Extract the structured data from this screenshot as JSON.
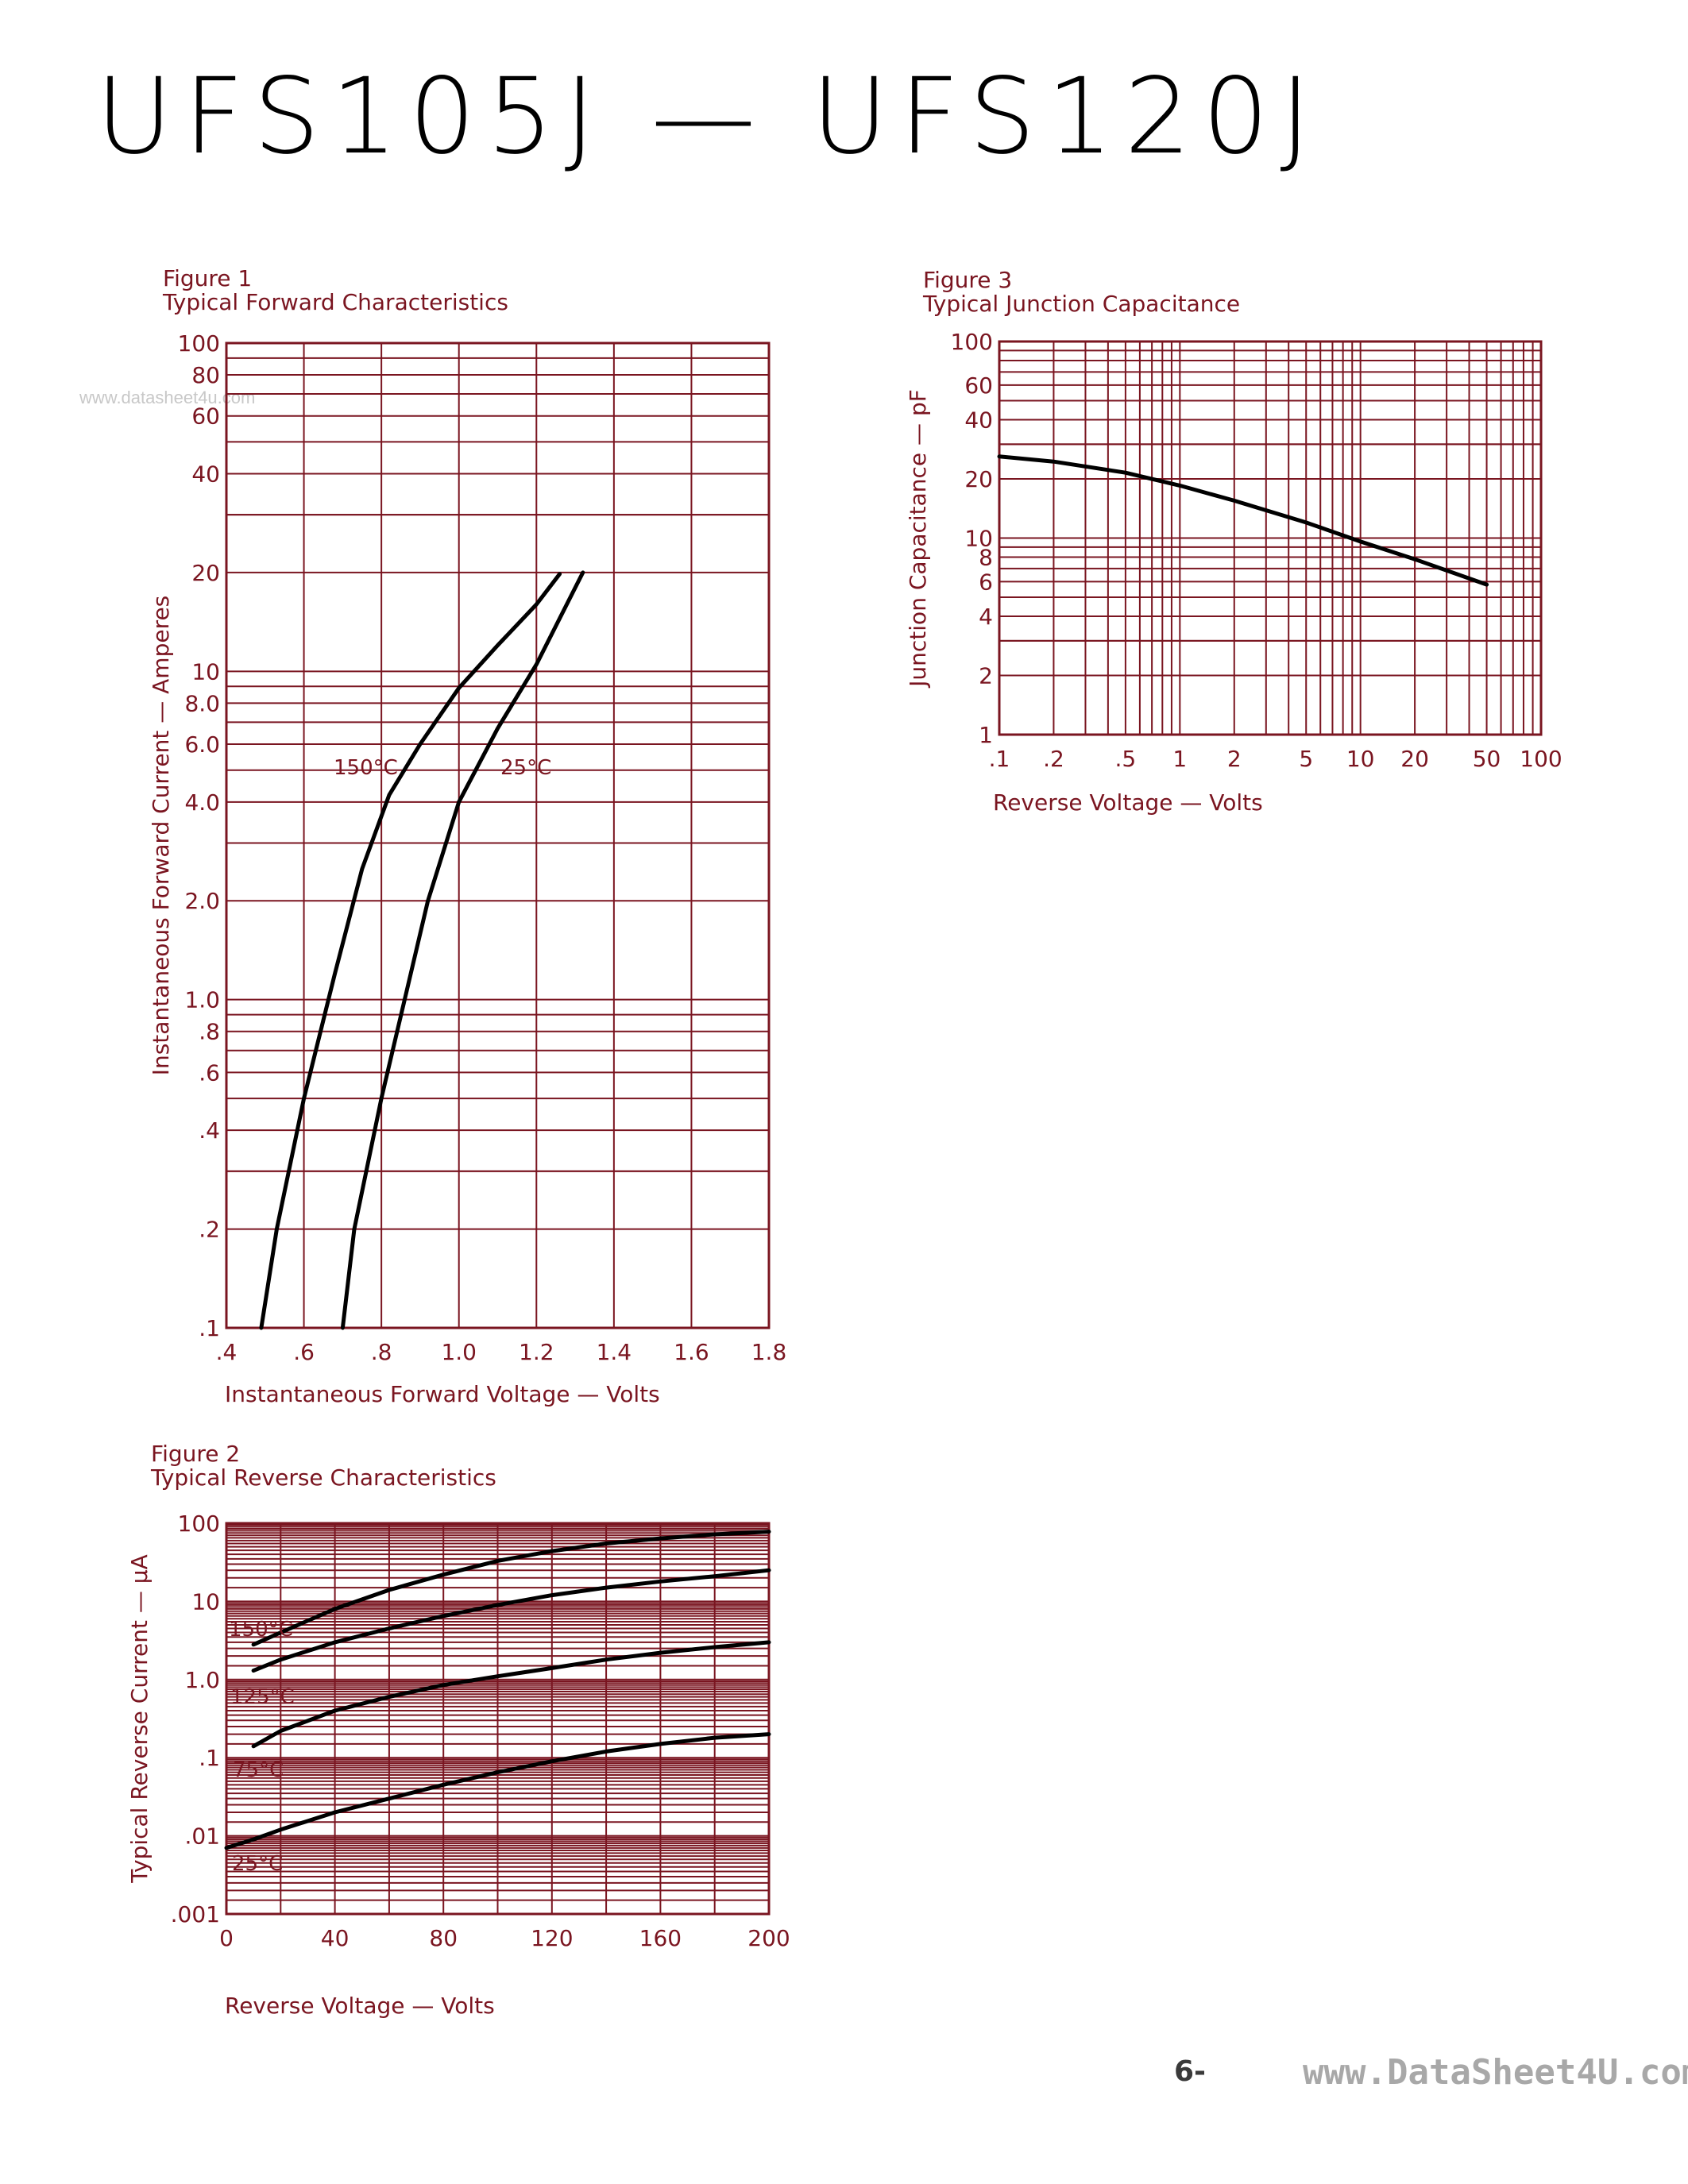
{
  "page": {
    "title": "UFS105J  —  UFS120J",
    "watermark": "www.datasheet4u.com",
    "footer": "6-",
    "footer_overlay": "www.DataSheet4U.com"
  },
  "chart_data": [
    {
      "type": "line",
      "figure_label": "Figure 1",
      "title": "Typical Forward Characteristics",
      "xlabel": "Instantaneous Forward Voltage — Volts",
      "ylabel": "Instantaneous Forward Current — Amperes",
      "xscale": "linear",
      "yscale": "log",
      "xlim": [
        0.4,
        1.8
      ],
      "ylim": [
        0.1,
        100
      ],
      "x_ticks": [
        ".4",
        ".6",
        ".8",
        "1.0",
        "1.2",
        "1.4",
        "1.6",
        "1.8"
      ],
      "y_ticks": [
        ".1",
        ".2",
        ".4",
        ".6",
        ".8",
        "1.0",
        "2.0",
        "4.0",
        "6.0",
        "8.0",
        "10",
        "20",
        "40",
        "60",
        "80",
        "100"
      ],
      "grid": true,
      "series": [
        {
          "name": "150°C",
          "x": [
            0.49,
            0.53,
            0.6,
            0.68,
            0.75,
            0.82,
            0.9,
            1.0,
            1.1,
            1.2,
            1.26
          ],
          "y": [
            0.1,
            0.2,
            0.5,
            1.2,
            2.5,
            4.2,
            6.0,
            8.9,
            12.0,
            16.0,
            19.8
          ]
        },
        {
          "name": "25°C",
          "x": [
            0.7,
            0.73,
            0.8,
            0.86,
            0.92,
            1.0,
            1.1,
            1.2,
            1.26,
            1.32
          ],
          "y": [
            0.1,
            0.2,
            0.5,
            1.0,
            2.0,
            4.0,
            6.7,
            10.5,
            14.5,
            20.0
          ]
        }
      ]
    },
    {
      "type": "line",
      "figure_label": "Figure 2",
      "title": "Typical Reverse Characteristics",
      "xlabel": "Reverse Voltage — Volts",
      "ylabel": "Typical Reverse Current — μA",
      "xscale": "linear",
      "yscale": "log",
      "xlim": [
        0,
        200
      ],
      "ylim": [
        0.001,
        100
      ],
      "x_ticks": [
        "0",
        "40",
        "80",
        "120",
        "160",
        "200"
      ],
      "y_ticks": [
        ".001",
        ".01",
        ".1",
        "1.0",
        "10",
        "100"
      ],
      "grid": true,
      "series": [
        {
          "name": "150°C",
          "x": [
            10,
            20,
            40,
            60,
            80,
            100,
            120,
            140,
            160,
            180,
            200
          ],
          "y": [
            2.8,
            4.0,
            8.0,
            14.0,
            22.0,
            33.0,
            44.0,
            55.0,
            64.0,
            72.0,
            78.0
          ]
        },
        {
          "name": "125°C",
          "x": [
            10,
            20,
            40,
            60,
            80,
            100,
            120,
            140,
            160,
            180,
            200
          ],
          "y": [
            1.3,
            1.8,
            3.0,
            4.5,
            6.5,
            9.0,
            12.0,
            15.0,
            18.0,
            21.0,
            25.0
          ]
        },
        {
          "name": "75°C",
          "x": [
            10,
            20,
            40,
            60,
            80,
            100,
            120,
            140,
            160,
            180,
            200
          ],
          "y": [
            0.14,
            0.22,
            0.4,
            0.6,
            0.85,
            1.1,
            1.4,
            1.8,
            2.2,
            2.6,
            3.0
          ]
        },
        {
          "name": "25°C",
          "x": [
            0,
            10,
            20,
            40,
            60,
            80,
            100,
            120,
            140,
            160,
            180,
            200
          ],
          "y": [
            0.007,
            0.009,
            0.012,
            0.02,
            0.03,
            0.045,
            0.065,
            0.09,
            0.12,
            0.15,
            0.18,
            0.2
          ]
        }
      ]
    },
    {
      "type": "line",
      "figure_label": "Figure 3",
      "title": "Typical Junction Capacitance",
      "xlabel": "Reverse Voltage — Volts",
      "ylabel": "Junction Capacitance — pF",
      "xscale": "log",
      "yscale": "log",
      "xlim": [
        0.1,
        100
      ],
      "ylim": [
        1,
        100
      ],
      "x_ticks": [
        ".1",
        ".2",
        ".5",
        "1",
        "2",
        "5",
        "10",
        "20",
        "50",
        "100"
      ],
      "y_ticks": [
        "1",
        "2",
        "4",
        "6",
        "8",
        "10",
        "20",
        "40",
        "60",
        "100"
      ],
      "grid": true,
      "series": [
        {
          "x": [
            0.1,
            0.2,
            0.5,
            1,
            2,
            5,
            10,
            20,
            50
          ],
          "y": [
            26,
            24.5,
            21.5,
            18.5,
            15.5,
            12,
            9.6,
            7.8,
            5.8
          ]
        }
      ]
    }
  ]
}
